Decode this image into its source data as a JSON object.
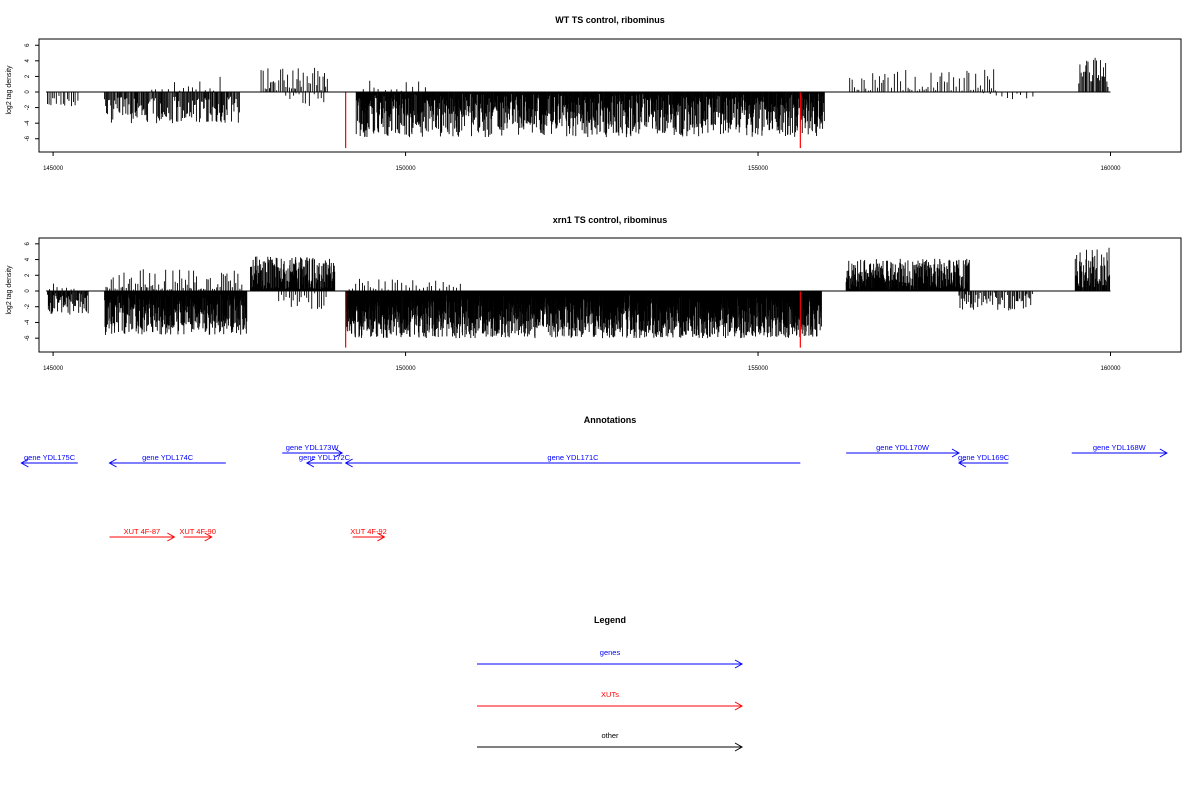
{
  "chart_data": [
    {
      "type": "bar",
      "title": "WT TS control, ribominus",
      "xlabel": "",
      "ylabel": "log2 tag density",
      "xlim": [
        144800,
        161000
      ],
      "ylim": [
        -7.5,
        7
      ],
      "yticks": [
        -6,
        -4,
        -2,
        0,
        2,
        4,
        6
      ],
      "xticks": [
        145000,
        150000,
        155000,
        160000
      ],
      "xtick_labels": [
        "145000",
        "150000",
        "155000",
        "160000"
      ],
      "ytick_labels": [
        "-6",
        "-4",
        "-2",
        "0",
        "2",
        "4",
        "6"
      ],
      "grid": false,
      "baseline_range": [
        144900,
        160000
      ],
      "colors": {
        "bars": "#000000",
        "highlight": "#ff0000"
      },
      "segments": [
        {
          "start": 144920,
          "end": 145380,
          "sign": -1,
          "mean": 1.2,
          "amp": 0.8,
          "step": 30
        },
        {
          "start": 145730,
          "end": 147650,
          "sign": -1,
          "mean": 2.3,
          "amp": 1.7,
          "step": 14
        },
        {
          "start": 146400,
          "end": 147400,
          "sign": 1,
          "mean": 0.4,
          "amp": 1.8,
          "step": 80
        },
        {
          "start": 147950,
          "end": 148900,
          "sign": 1,
          "mean": 1.5,
          "amp": 1.6,
          "step": 22
        },
        {
          "start": 148300,
          "end": 148850,
          "sign": -1,
          "mean": 0.8,
          "amp": 1.2,
          "step": 55
        },
        {
          "start": 149300,
          "end": 155950,
          "sign": -1,
          "mean": 3.0,
          "amp": 2.8,
          "step": 7
        },
        {
          "start": 149400,
          "end": 150300,
          "sign": 1,
          "mean": 0.7,
          "amp": 1.0,
          "step": 75
        },
        {
          "start": 156300,
          "end": 158400,
          "sign": 1,
          "mean": 1.2,
          "amp": 1.8,
          "step": 35
        },
        {
          "start": 158200,
          "end": 158900,
          "sign": -1,
          "mean": 0.7,
          "amp": 1.0,
          "step": 70
        },
        {
          "start": 159550,
          "end": 159980,
          "sign": 1,
          "mean": 2.6,
          "amp": 2.0,
          "step": 16
        }
      ],
      "highlight_bars": [
        {
          "x": 149150,
          "value": -7.2
        },
        {
          "x": 155600,
          "value": -7.2
        }
      ]
    },
    {
      "type": "bar",
      "title": "xrn1 TS control, ribominus",
      "xlabel": "",
      "ylabel": "log2 tag density",
      "xlim": [
        144800,
        161000
      ],
      "ylim": [
        -7.5,
        7
      ],
      "yticks": [
        -6,
        -4,
        -2,
        0,
        2,
        4,
        6
      ],
      "xticks": [
        145000,
        150000,
        155000,
        160000
      ],
      "xtick_labels": [
        "145000",
        "150000",
        "155000",
        "160000"
      ],
      "ytick_labels": [
        "-6",
        "-4",
        "-2",
        "0",
        "2",
        "4",
        "6"
      ],
      "grid": false,
      "baseline_range": [
        144900,
        160000
      ],
      "colors": {
        "bars": "#000000",
        "highlight": "#ff0000"
      },
      "segments": [
        {
          "start": 144920,
          "end": 145500,
          "sign": -1,
          "mean": 1.6,
          "amp": 1.4,
          "step": 10
        },
        {
          "start": 144950,
          "end": 145300,
          "sign": 1,
          "mean": 0.4,
          "amp": 0.7,
          "step": 60
        },
        {
          "start": 145730,
          "end": 147750,
          "sign": -1,
          "mean": 3.0,
          "amp": 2.6,
          "step": 5
        },
        {
          "start": 145750,
          "end": 147700,
          "sign": 1,
          "mean": 1.0,
          "amp": 1.8,
          "step": 25
        },
        {
          "start": 147800,
          "end": 149000,
          "sign": 1,
          "mean": 2.0,
          "amp": 2.4,
          "step": 6
        },
        {
          "start": 148200,
          "end": 148900,
          "sign": -1,
          "mean": 1.0,
          "amp": 1.4,
          "step": 35
        },
        {
          "start": 149150,
          "end": 155900,
          "sign": -1,
          "mean": 3.2,
          "amp": 2.8,
          "step": 4
        },
        {
          "start": 149200,
          "end": 150800,
          "sign": 1,
          "mean": 0.6,
          "amp": 1.0,
          "step": 45
        },
        {
          "start": 156250,
          "end": 158000,
          "sign": 1,
          "mean": 2.1,
          "amp": 2.0,
          "step": 6
        },
        {
          "start": 157850,
          "end": 158900,
          "sign": -1,
          "mean": 1.3,
          "amp": 1.2,
          "step": 18
        },
        {
          "start": 159500,
          "end": 159990,
          "sign": 1,
          "mean": 3.0,
          "amp": 2.6,
          "step": 9
        }
      ],
      "highlight_bars": [
        {
          "x": 149150,
          "value": -7.2
        },
        {
          "x": 155600,
          "value": -7.2
        }
      ]
    }
  ],
  "annotations": {
    "title": "Annotations",
    "features": [
      {
        "label": "gene YDL175C",
        "kind": "gene",
        "start": 145350,
        "end": 144550,
        "row": 1
      },
      {
        "label": "gene YDL174C",
        "kind": "gene",
        "start": 147450,
        "end": 145800,
        "row": 1
      },
      {
        "label": "gene YDL173W",
        "kind": "gene",
        "start": 148250,
        "end": 149100,
        "row": 0
      },
      {
        "label": "gene YDL172C",
        "kind": "gene",
        "start": 149100,
        "end": 148600,
        "row": 1
      },
      {
        "label": "gene YDL171C",
        "kind": "gene",
        "start": 155600,
        "end": 149150,
        "row": 1
      },
      {
        "label": "gene YDL170W",
        "kind": "gene",
        "start": 156250,
        "end": 157850,
        "row": 0
      },
      {
        "label": "gene YDL169C",
        "kind": "gene",
        "start": 158550,
        "end": 157850,
        "row": 1
      },
      {
        "label": "gene YDL168W",
        "kind": "gene",
        "start": 159450,
        "end": 160800,
        "row": 0
      },
      {
        "label": "XUT 4F-87",
        "kind": "xut",
        "start": 145800,
        "end": 146720,
        "row": 2
      },
      {
        "label": "XUT 4F-90",
        "kind": "xut",
        "start": 146850,
        "end": 147250,
        "row": 2
      },
      {
        "label": "XUT 4F-92",
        "kind": "xut",
        "start": 149250,
        "end": 149700,
        "row": 2
      }
    ],
    "colors": {
      "gene": "#0000ff",
      "xut": "#ff0000"
    }
  },
  "legend": {
    "title": "Legend",
    "items": [
      {
        "label": "genes",
        "color": "#0000ff"
      },
      {
        "label": "XUTs",
        "color": "#ff0000"
      },
      {
        "label": "other",
        "color": "#000000"
      }
    ]
  }
}
